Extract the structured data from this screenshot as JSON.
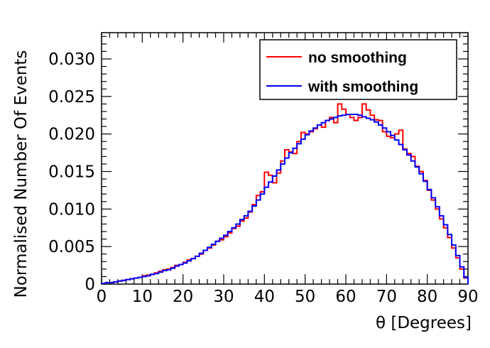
{
  "chart_data": {
    "type": "histogram",
    "title": "",
    "xlabel": "θ [Degrees]",
    "ylabel": "Normalised Number Of Events",
    "xlim": [
      0,
      90
    ],
    "ylim": [
      0,
      0.0335
    ],
    "x_ticks": [
      "0",
      "10",
      "20",
      "30",
      "40",
      "50",
      "60",
      "70",
      "80",
      "90"
    ],
    "y_ticks": [
      "0",
      "0.005",
      "0.010",
      "0.015",
      "0.020",
      "0.025",
      "0.030"
    ],
    "grid": false,
    "legend_position": "top-right",
    "bin_width": 1,
    "bin_start": 0,
    "series": [
      {
        "name": "no smoothing",
        "color": "#ff0000",
        "values": [
          0.0001,
          0.0002,
          0.0002,
          0.0003,
          0.0004,
          0.0005,
          0.0006,
          0.0007,
          0.0008,
          0.0009,
          0.0011,
          0.0012,
          0.0013,
          0.0015,
          0.0017,
          0.0019,
          0.002,
          0.0022,
          0.0025,
          0.0026,
          0.0029,
          0.0032,
          0.0034,
          0.0037,
          0.004,
          0.0045,
          0.0048,
          0.0052,
          0.0057,
          0.0059,
          0.0063,
          0.0068,
          0.0074,
          0.0077,
          0.0084,
          0.0088,
          0.0096,
          0.0106,
          0.0118,
          0.0123,
          0.0149,
          0.0145,
          0.0135,
          0.0148,
          0.0164,
          0.0179,
          0.0176,
          0.0174,
          0.019,
          0.0202,
          0.02,
          0.0203,
          0.0207,
          0.0212,
          0.0209,
          0.0218,
          0.0222,
          0.0215,
          0.024,
          0.0233,
          0.0226,
          0.0222,
          0.0218,
          0.0222,
          0.024,
          0.0232,
          0.0225,
          0.0219,
          0.0218,
          0.0203,
          0.0197,
          0.0195,
          0.02,
          0.0205,
          0.018,
          0.0174,
          0.017,
          0.0157,
          0.015,
          0.0138,
          0.0125,
          0.0112,
          0.01,
          0.0087,
          0.0075,
          0.0062,
          0.0048,
          0.0035,
          0.002,
          0.0008
        ]
      },
      {
        "name": "with smoothing",
        "color": "#0000ff",
        "values": [
          0.0001,
          0.0002,
          0.0002,
          0.0003,
          0.0004,
          0.0005,
          0.0006,
          0.0007,
          0.0008,
          0.0009,
          0.001,
          0.0011,
          0.0013,
          0.0014,
          0.0016,
          0.0018,
          0.0019,
          0.0021,
          0.0024,
          0.0026,
          0.0028,
          0.0031,
          0.0034,
          0.0037,
          0.0041,
          0.0045,
          0.0049,
          0.0053,
          0.0057,
          0.0061,
          0.0065,
          0.007,
          0.0075,
          0.008,
          0.0086,
          0.0091,
          0.0097,
          0.0104,
          0.0112,
          0.012,
          0.0129,
          0.0136,
          0.0144,
          0.0152,
          0.016,
          0.0168,
          0.0175,
          0.0181,
          0.0187,
          0.0193,
          0.0199,
          0.0204,
          0.0208,
          0.0212,
          0.0215,
          0.0218,
          0.022,
          0.0222,
          0.0224,
          0.0225,
          0.0226,
          0.0226,
          0.0226,
          0.0225,
          0.0223,
          0.0221,
          0.0219,
          0.0216,
          0.0212,
          0.0208,
          0.0203,
          0.0198,
          0.0192,
          0.0186,
          0.0179,
          0.0172,
          0.0164,
          0.0156,
          0.0147,
          0.0137,
          0.0126,
          0.0115,
          0.0103,
          0.0091,
          0.0079,
          0.0066,
          0.0052,
          0.0038,
          0.0023,
          0.0009
        ]
      }
    ]
  }
}
